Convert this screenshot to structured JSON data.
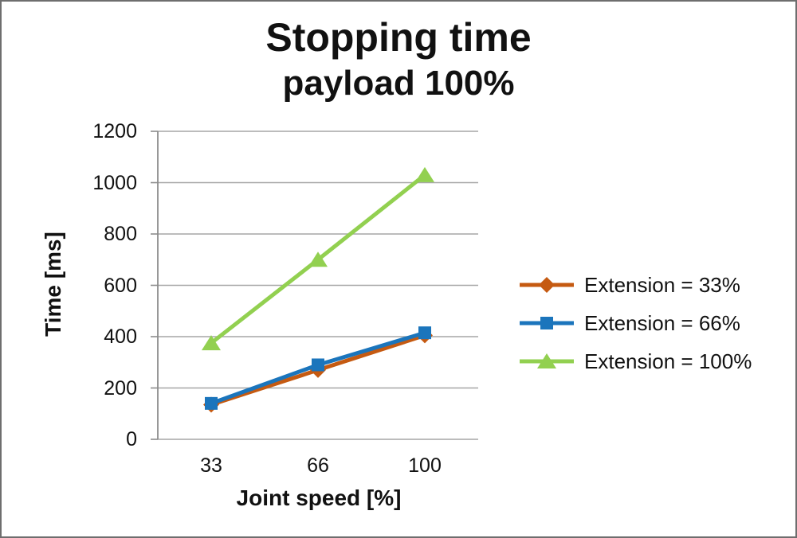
{
  "title": "Stopping time",
  "subtitle": "payload 100%",
  "chart_data": {
    "type": "line",
    "categories": [
      "33",
      "66",
      "100"
    ],
    "xlabel": "Joint speed [%]",
    "ylabel": "Time [ms]",
    "ylim": [
      0,
      1200
    ],
    "yticks": [
      0,
      200,
      400,
      600,
      800,
      1000,
      1200
    ],
    "grid": true,
    "legend_position": "right",
    "series": [
      {
        "name": "Extension = 33%",
        "marker": "diamond",
        "color": "#C55A11",
        "values": [
          135,
          270,
          405
        ]
      },
      {
        "name": "Extension = 66%",
        "marker": "square",
        "color": "#1B75BC",
        "values": [
          140,
          290,
          415
        ]
      },
      {
        "name": "Extension = 100%",
        "marker": "triangle",
        "color": "#92D050",
        "values": [
          375,
          700,
          1030
        ]
      }
    ]
  },
  "colors": {
    "gridline": "#A6A6A6",
    "axis": "#8C8C8C",
    "text": "#111111",
    "background": "#FFFFFF",
    "border": "#6E6E6E"
  }
}
